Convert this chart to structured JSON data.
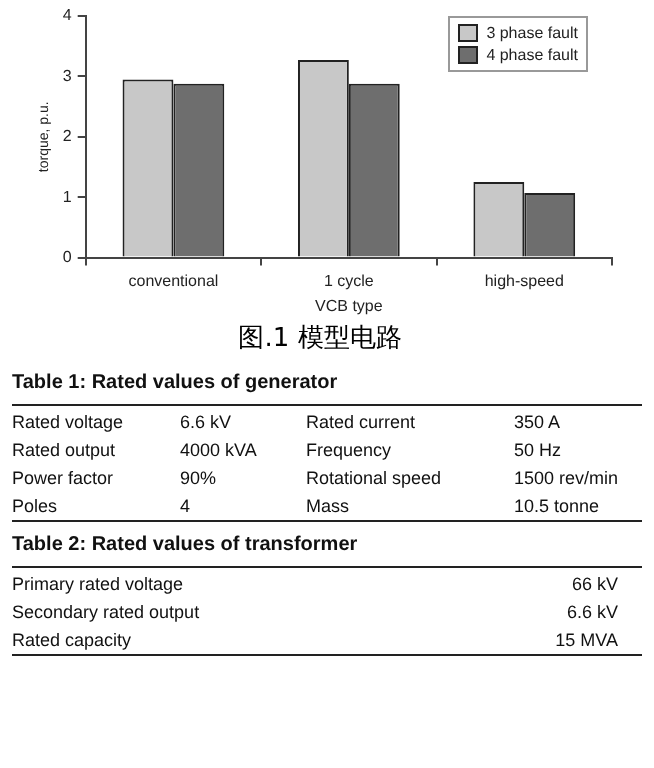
{
  "chart_data": [
    {
      "type": "bar",
      "categories": [
        "conventional",
        "1 cycle",
        "high-speed"
      ],
      "xlabel": "VCB type",
      "ylabel": "torque, p.u.",
      "ylim": [
        0,
        4
      ],
      "yticks": [
        0,
        1,
        2,
        3,
        4
      ],
      "grid": false,
      "legend": "top right",
      "annotations": [
        "图.1 模型电路"
      ],
      "series": [
        {
          "name": "3 phase fault",
          "color": "#c8c8c8",
          "values": [
            2.95,
            3.27,
            1.25
          ]
        },
        {
          "name": "4 phase fault",
          "color": "#6e6e6e",
          "values": [
            2.88,
            2.88,
            1.07
          ]
        }
      ]
    },
    {
      "type": "other",
      "title": "Table 1: Rated values of generator",
      "annotations": [
        "Rated voltage",
        "6.6 kV",
        "Rated current",
        "350 A",
        "Rated output",
        "4000 kVA",
        "Frequency",
        "50 Hz",
        "Power factor",
        "90%",
        "Rotational speed",
        "1500 rev/min",
        "Poles",
        "4",
        "Mass",
        "10.5 tonne"
      ]
    },
    {
      "type": "other",
      "title": "Table 2: Rated values of transformer",
      "annotations": [
        "Primary rated voltage",
        "66 kV",
        "Secondary rated output",
        "6.6 kV",
        "Rated capacity",
        "15 MVA"
      ]
    }
  ]
}
